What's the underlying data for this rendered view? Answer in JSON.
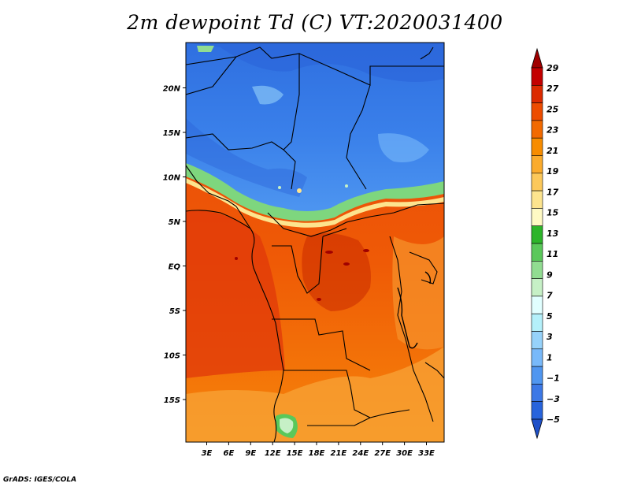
{
  "title": "2m dewpoint Td (C) VT:2020031400",
  "credit": "GrADS: IGES/COLA",
  "map": {
    "lat_labels": [
      {
        "label": "20N",
        "lat": 20
      },
      {
        "label": "15N",
        "lat": 15
      },
      {
        "label": "10N",
        "lat": 10
      },
      {
        "label": "5N",
        "lat": 5
      },
      {
        "label": "EQ",
        "lat": 0
      },
      {
        "label": "5S",
        "lat": -5
      },
      {
        "label": "10S",
        "lat": -10
      },
      {
        "label": "15S",
        "lat": -15
      }
    ],
    "lon_labels": [
      {
        "label": "3E",
        "lon": 3
      },
      {
        "label": "6E",
        "lon": 6
      },
      {
        "label": "9E",
        "lon": 9
      },
      {
        "label": "12E",
        "lon": 12
      },
      {
        "label": "15E",
        "lon": 15
      },
      {
        "label": "18E",
        "lon": 18
      },
      {
        "label": "21E",
        "lon": 21
      },
      {
        "label": "24E",
        "lon": 24
      },
      {
        "label": "27E",
        "lon": 27
      },
      {
        "label": "30E",
        "lon": 30
      },
      {
        "label": "33E",
        "lon": 33
      }
    ]
  },
  "colorbar": {
    "labels": [
      "29",
      "27",
      "25",
      "23",
      "21",
      "19",
      "17",
      "15",
      "13",
      "11",
      "9",
      "7",
      "5",
      "3",
      "1",
      "−1",
      "−3",
      "−5"
    ],
    "colors": [
      "#a00000",
      "#c30000",
      "#dc2a00",
      "#ed4c00",
      "#f26a00",
      "#f78c00",
      "#fbab2c",
      "#fcc85a",
      "#fde48e",
      "#fffac4",
      "#2db52a",
      "#5ac85a",
      "#91dc91",
      "#c6f0c6",
      "#e1ffff",
      "#b4f0fa",
      "#96d2fa",
      "#78b9fa",
      "#5096f0",
      "#3c78e6",
      "#2864dc",
      "#1e50c8"
    ]
  }
}
